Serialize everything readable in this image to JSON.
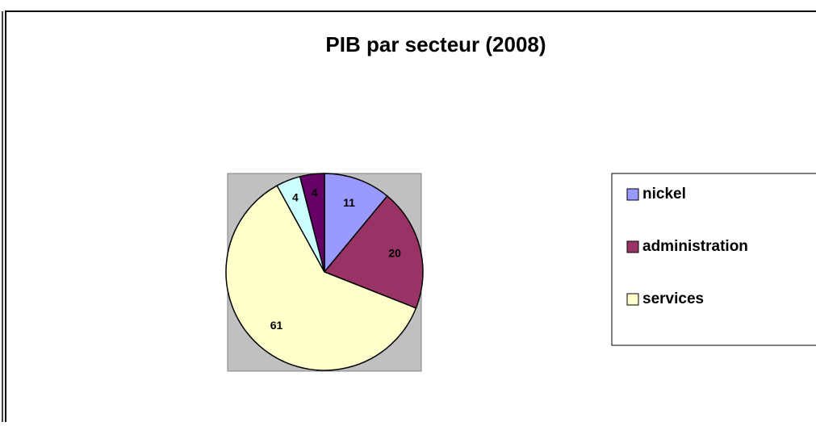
{
  "chart_data": {
    "type": "pie",
    "title": "PIB par secteur (2008)",
    "categories": [
      "nickel",
      "administration",
      "services",
      null,
      null
    ],
    "values": [
      11,
      20,
      61,
      4,
      4
    ],
    "colors": [
      "#9999ff",
      "#993366",
      "#ffffcc",
      "#ccffff",
      "#660066"
    ]
  }
}
